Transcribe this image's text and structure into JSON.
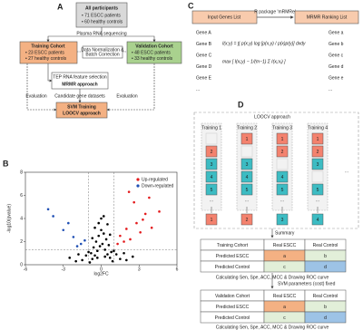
{
  "panel_a": {
    "label": "A",
    "all_box": {
      "title": "All participants",
      "items": [
        "• 71 ESCC patients",
        "• 60 healthy controls"
      ]
    },
    "step_seq": "Plasma RNA sequencing",
    "training": {
      "title": "Training Cohort",
      "items": [
        "• 23 ESCC patients",
        "• 27 healthy controls"
      ]
    },
    "normalization": [
      "Data Normalization &",
      "Batch Correction"
    ],
    "validation": {
      "title": "Validation Cohort",
      "items": [
        "• 48 ESCC patients",
        "• 33 healthy controls"
      ]
    },
    "feature": {
      "title": "TEP RNA feature selection",
      "method": "MRMR approach"
    },
    "notes": [
      "Evaluation",
      "Candidate gene datasets",
      "Evaluation"
    ],
    "svm": {
      "title": "SVM Training",
      "method": "LOOCV approach"
    }
  },
  "panel_c": {
    "label": "C",
    "input": "Input Genes List",
    "tool": "R package 'mRMRe'",
    "output": "MRMR Ranking List",
    "genes_in": [
      "Gene A",
      "Gene B",
      "Gene C",
      "Gene D",
      "Gene E",
      "..."
    ],
    "genes_out": [
      "Gene a",
      "Gene b",
      "Gene c",
      "Gene d",
      "Gene e",
      "..."
    ],
    "formula_1": "I(x;y) = ∫∫ p(x,y) log [p(x,y) / p(x)p(y)] dxdy",
    "formula_2": "max [ I(xᵢ;y) − 1/(m−1) Σ I(xᵢ;xⱼ) ]"
  },
  "chart_data": {
    "type": "scatter",
    "label": "B",
    "xlabel": "log2FC",
    "ylabel": "-log10(pvalue)",
    "xlim": [
      -6,
      6
    ],
    "ylim": [
      0,
      8
    ],
    "xticks": [
      -6,
      -3,
      0,
      3,
      6
    ],
    "yticks": [
      0,
      2,
      4,
      6,
      8
    ],
    "vlines": [
      -1,
      1
    ],
    "hline": 1.3,
    "series": [
      {
        "name": "Up-regulated",
        "color": "#e31a1c",
        "x": [
          1.5,
          2,
          2.3,
          2.8,
          3.1,
          3.5,
          4,
          1.8,
          2.6,
          3.8,
          4.6,
          2.2,
          1.3,
          3.3
        ],
        "y": [
          2.5,
          3.1,
          2.2,
          3.6,
          2.8,
          4.4,
          3.2,
          2,
          5.4,
          5.8,
          4.6,
          6.3,
          1.8,
          3.9
        ]
      },
      {
        "name": "Down-regulated",
        "color": "#1f4fb4",
        "x": [
          -1.6,
          -2.2,
          -3,
          -3.8,
          -1.3,
          -2.6,
          -4.2,
          -1.9
        ],
        "y": [
          1.8,
          2.4,
          3,
          4.2,
          2.1,
          3.6,
          4.8,
          1.6
        ]
      },
      {
        "color": "#000000",
        "x": [
          -0.9,
          -0.7,
          -0.5,
          -0.3,
          -0.1,
          0.1,
          0.3,
          0.5,
          0.7,
          0.9,
          -0.8,
          -0.6,
          -0.4,
          -0.2,
          0,
          0.2,
          0.4,
          0.6,
          0.8,
          -1.5,
          -1.2,
          1.2,
          1.5,
          -2,
          2,
          -0.5,
          0.5,
          -1,
          1,
          0,
          -0.3,
          0.3,
          -0.7,
          0.7,
          -1.8,
          1.8,
          -2.5,
          2.5,
          -0.2,
          0.2
        ],
        "y": [
          0.2,
          0.5,
          0.8,
          1.2,
          1.6,
          1.8,
          1.3,
          0.9,
          0.6,
          0.3,
          1,
          1.5,
          2,
          2.5,
          3,
          2.7,
          2.2,
          1.7,
          1.1,
          0.4,
          0.8,
          0.9,
          0.5,
          0.3,
          0.4,
          3.2,
          3.5,
          1.1,
          1.2,
          4,
          0.6,
          0.7,
          2.3,
          2.6,
          0.9,
          1,
          0.6,
          0.7,
          3.6,
          4.2
        ]
      }
    ]
  },
  "panel_d": {
    "label": "D",
    "title": "LOOCV approach",
    "folds": [
      {
        "name": "Training 1",
        "cells": [
          1,
          2,
          3,
          4,
          5
        ]
      },
      {
        "name": "Training 2",
        "cells": [
          1,
          2,
          3,
          4,
          5
        ]
      },
      {
        "name": "Training 3",
        "cells": [
          1,
          2,
          3,
          4,
          5
        ]
      },
      {
        "name": "Training 4",
        "cells": [
          1,
          2,
          3,
          4,
          5
        ]
      }
    ],
    "ellipsis": "···",
    "summary": "Summary",
    "table_1": [
      [
        "Training Cohort",
        "Real ESCC",
        "Real Control"
      ],
      [
        "Predicted ESCC",
        "a",
        "b"
      ],
      [
        "Predicted Control",
        "c",
        "d"
      ]
    ],
    "caption_1": "Calculating Sen, Spe, ACC, MCC & Drawing ROC curve",
    "fixed": "SVM parameters (cost) fixed",
    "table_2": [
      [
        "Validation Cohort",
        "Real ESCC",
        "Real Control"
      ],
      [
        "Predicted ESCC",
        "a",
        "b"
      ],
      [
        "Predicted Control",
        "c",
        "d"
      ]
    ],
    "caption_2": "Calculating Sen, Spe, ACC, MCC & Drawing ROC curve"
  }
}
